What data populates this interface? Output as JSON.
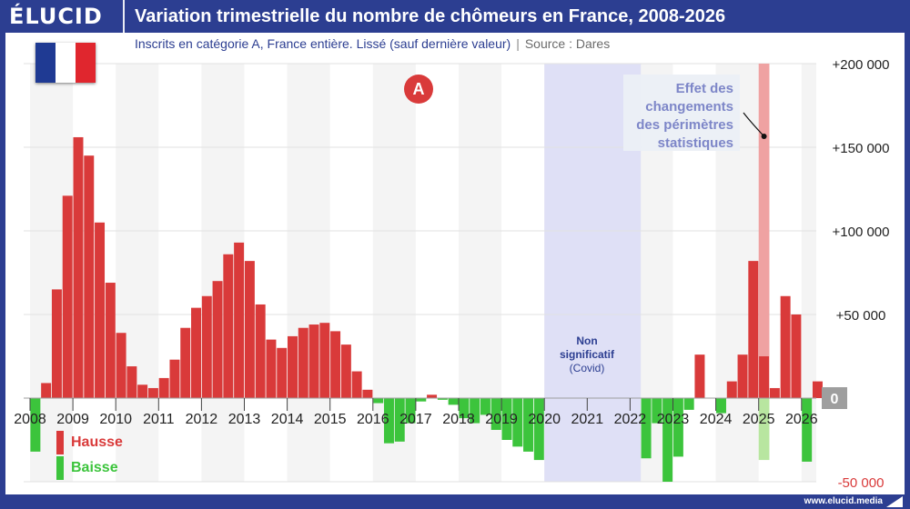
{
  "header": {
    "logo": "ÉLUCID",
    "title": "Variation trimestrielle du nombre de chômeurs en France, 2008-2026"
  },
  "subtitle": {
    "text": "Inscrits en catégorie A, France entière. Lissé (sauf dernière valeur)",
    "separator": "|",
    "source": "Source : Dares"
  },
  "badge": "A",
  "covid_annotation": {
    "line1": "Non",
    "line2": "significatif",
    "line3": "(Covid)"
  },
  "effet_annotation": "Effet des changements des périmètres statistiques",
  "legend": {
    "hausse": "Hausse",
    "baisse": "Baisse"
  },
  "footer": "www.elucid.media",
  "colors": {
    "brand": "#2c3e91",
    "hausse": "#d93a3a",
    "baisse": "#3cc43c",
    "covid": "#dfe0f6",
    "effet_hausse": "#efa2a2",
    "effet_baisse": "#b8e6a0",
    "zero_box": "#9e9e9e"
  },
  "chart_data": {
    "type": "bar",
    "title": "Variation trimestrielle du nombre de chômeurs en France, 2008-2026",
    "subtitle": "Inscrits en catégorie A, France entière. Lissé (sauf dernière valeur)",
    "ylim": [
      -50000,
      200000
    ],
    "y_ticks": [
      -50000,
      0,
      50000,
      100000,
      150000,
      200000
    ],
    "y_tick_labels": [
      "-50 000",
      "0",
      "+50 000",
      "+100 000",
      "+150 000",
      "+200 000"
    ],
    "x_tick_labels": [
      "2008",
      "2009",
      "2010",
      "2011",
      "2012",
      "2013",
      "2014",
      "2015",
      "2016",
      "2017",
      "2018",
      "2019",
      "2020",
      "2021",
      "2022",
      "2023",
      "2024",
      "2025",
      "2026"
    ],
    "x_start": 2008.0,
    "period": "quarter",
    "covid_range": [
      2020.0,
      2022.25
    ],
    "legend": [
      "Hausse",
      "Baisse"
    ],
    "values": [
      -32000,
      9000,
      65000,
      121000,
      156000,
      145000,
      105000,
      69000,
      39000,
      19000,
      8000,
      6000,
      12000,
      23000,
      42000,
      54000,
      61000,
      70000,
      86000,
      93000,
      82000,
      56000,
      35000,
      30000,
      37000,
      42000,
      44000,
      45000,
      40000,
      32000,
      16000,
      5000,
      -3000,
      -27000,
      -26000,
      -15000,
      -2000,
      2000,
      -1000,
      -4000,
      -12000,
      -15000,
      -10000,
      -19000,
      -25000,
      -29000,
      -32000,
      -37000,
      null,
      null,
      null,
      null,
      null,
      null,
      null,
      null,
      null,
      -36000,
      -15000,
      -50000,
      -35000,
      -7000,
      26000,
      0,
      -9000,
      10000,
      26000,
      82000,
      25000,
      6000,
      61000,
      50000,
      -38000,
      10000
    ],
    "effet_index": 68,
    "effet_values": [
      200000,
      -37000
    ]
  }
}
